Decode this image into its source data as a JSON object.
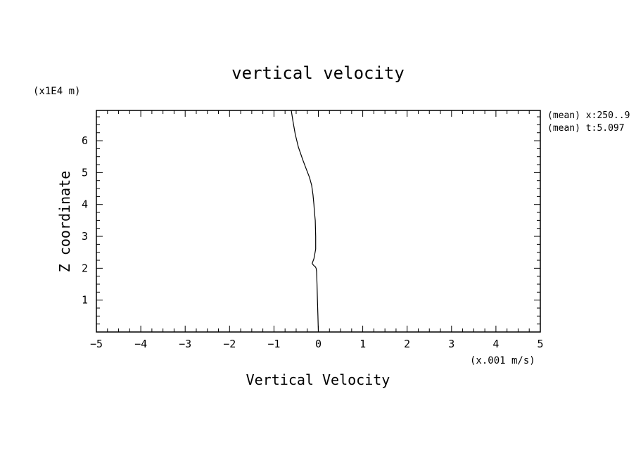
{
  "chart_data": {
    "type": "line",
    "title": "vertical velocity",
    "xlabel": "Vertical Velocity",
    "ylabel": "Z coordinate",
    "x_unit_label": "(x.001 m/s)",
    "y_unit_label": "(x1E4 m)",
    "annotations": [
      "(mean) x:250..9",
      "(mean) t:5.097"
    ],
    "xlim": [
      -5,
      5
    ],
    "ylim": [
      0,
      6.95
    ],
    "x_ticks": [
      -5,
      -4,
      -3,
      -2,
      -1,
      0,
      1,
      2,
      3,
      4,
      5
    ],
    "x_tick_labels": [
      "−5",
      "−4",
      "−3",
      "−2",
      "−1",
      "0",
      "1",
      "2",
      "3",
      "4",
      "5"
    ],
    "y_ticks": [
      1,
      2,
      3,
      4,
      5,
      6
    ],
    "y_tick_labels": [
      "1",
      "2",
      "3",
      "4",
      "5",
      "6"
    ],
    "grid": false,
    "series": [
      {
        "x": [
          0.0,
          -0.01,
          -0.02,
          -0.03,
          -0.04,
          -0.05,
          -0.07,
          -0.1,
          -0.14,
          -0.1,
          -0.06,
          -0.06,
          -0.07,
          -0.09,
          -0.1,
          -0.12,
          -0.15,
          -0.2,
          -0.27,
          -0.35,
          -0.45,
          -0.52,
          -0.57,
          -0.61
        ],
        "y": [
          0.0,
          0.5,
          1.0,
          1.5,
          1.9,
          2.0,
          2.05,
          2.08,
          2.15,
          2.3,
          2.6,
          3.0,
          3.5,
          3.8,
          4.0,
          4.3,
          4.6,
          4.85,
          5.1,
          5.4,
          5.8,
          6.2,
          6.6,
          6.95
        ]
      }
    ]
  }
}
